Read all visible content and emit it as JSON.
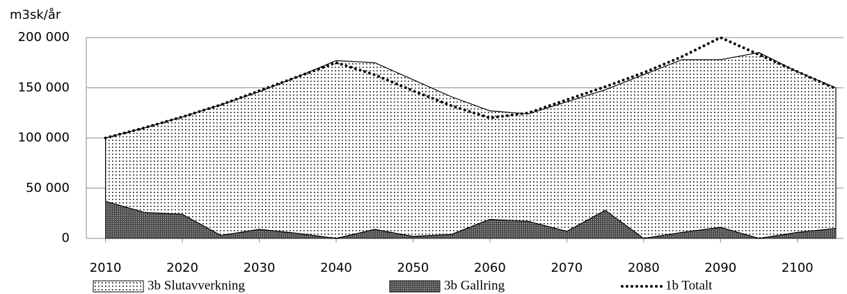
{
  "chart_data": {
    "type": "area",
    "y_label": "m3sk/år",
    "x": [
      2010,
      2015,
      2020,
      2025,
      2030,
      2035,
      2040,
      2045,
      2050,
      2055,
      2060,
      2065,
      2070,
      2075,
      2080,
      2085,
      2090,
      2095,
      2100,
      2105
    ],
    "xlim": [
      2007.5,
      2106
    ],
    "xticks": [
      2010,
      2020,
      2030,
      2040,
      2050,
      2060,
      2070,
      2080,
      2090,
      2100
    ],
    "ylim": [
      0,
      200000
    ],
    "yticks": [
      {
        "value": 0,
        "label": "0"
      },
      {
        "value": 50000,
        "label": "50 000"
      },
      {
        "value": 100000,
        "label": "100 000"
      },
      {
        "value": 150000,
        "label": "150 000"
      },
      {
        "value": 200000,
        "label": "200 000"
      }
    ],
    "grid": true,
    "stacked": true,
    "legend": "bottom",
    "series": [
      {
        "name": "3b Slutavverkning",
        "type": "area",
        "pattern": "dots",
        "color": "#000000",
        "values": [
          63000,
          84000,
          97000,
          130000,
          137000,
          156000,
          177000,
          166000,
          156000,
          137000,
          108000,
          107000,
          129000,
          120000,
          163000,
          172000,
          167000,
          185000,
          160000,
          140000
        ]
      },
      {
        "name": "3b Gallring",
        "type": "area",
        "pattern": "crosshatch",
        "color": "#333333",
        "values": [
          37000,
          26000,
          24000,
          3000,
          9000,
          5000,
          0,
          9000,
          2000,
          4000,
          19000,
          17000,
          7000,
          28000,
          0,
          6000,
          11000,
          0,
          6000,
          10000
        ]
      },
      {
        "name": "1b Totalt",
        "type": "line",
        "pattern": "dotted",
        "color": "#000000",
        "values": [
          100000,
          110000,
          121000,
          133000,
          147000,
          161000,
          175000,
          163000,
          147000,
          132000,
          120000,
          125000,
          138000,
          151000,
          165000,
          181000,
          200000,
          183000,
          166000,
          149000
        ]
      }
    ]
  }
}
